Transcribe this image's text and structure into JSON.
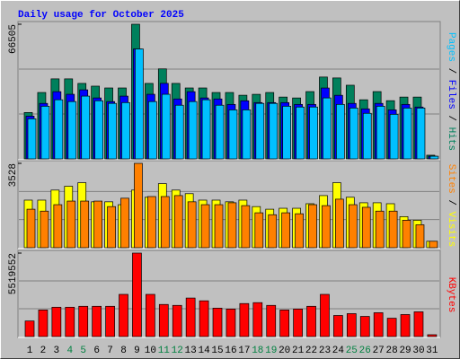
{
  "chart_data": [
    {
      "type": "bar",
      "title": "Daily usage for October 2025",
      "categories": [
        1,
        2,
        3,
        4,
        5,
        6,
        7,
        8,
        9,
        10,
        11,
        12,
        13,
        14,
        15,
        16,
        17,
        18,
        19,
        20,
        21,
        22,
        23,
        24,
        25,
        26,
        27,
        28,
        29,
        30,
        31
      ],
      "category_colors": [
        "#000000",
        "#000000",
        "#000000",
        "#008040",
        "#008040",
        "#000000",
        "#000000",
        "#000000",
        "#000000",
        "#000000",
        "#008040",
        "#008040",
        "#000000",
        "#000000",
        "#000000",
        "#000000",
        "#000000",
        "#008040",
        "#008040",
        "#000000",
        "#000000",
        "#000000",
        "#000000",
        "#000000",
        "#008040",
        "#008040",
        "#000000",
        "#000000",
        "#000000",
        "#000000",
        "#000000"
      ],
      "legend_separator": " / ",
      "ylim": [
        0,
        66505
      ],
      "yticks": [
        66505
      ],
      "series": [
        {
          "name": "Hits",
          "color": "#00805c",
          "values": [
            22900,
            32780,
            39510,
            39510,
            37270,
            35920,
            35020,
            35020,
            66505,
            37270,
            44450,
            37270,
            35020,
            35020,
            32780,
            32780,
            31430,
            31880,
            32780,
            30530,
            30080,
            33230,
            40410,
            39960,
            36370,
            29190,
            33230,
            28740,
            30530,
            30530,
            1800
          ]
        },
        {
          "name": "Files",
          "color": "#0000ff",
          "values": [
            21100,
            27400,
            33200,
            31900,
            34100,
            30100,
            28300,
            31000,
            54300,
            31900,
            37300,
            29600,
            33200,
            30100,
            29600,
            26900,
            28700,
            27800,
            27800,
            27800,
            26900,
            26900,
            35000,
            31400,
            27400,
            24700,
            27400,
            24200,
            26900,
            25600,
            1300
          ]
        },
        {
          "name": "Pages",
          "color": "#00c0ff",
          "values": [
            19800,
            26000,
            29200,
            28300,
            31000,
            28700,
            27400,
            27800,
            54300,
            28300,
            31900,
            26500,
            28300,
            29200,
            26500,
            24200,
            24200,
            27400,
            27400,
            26000,
            25600,
            25600,
            30100,
            26900,
            25100,
            22500,
            26000,
            22000,
            25100,
            25100,
            1300
          ]
        }
      ]
    },
    {
      "type": "bar",
      "legend_separator": " / ",
      "ylim": [
        0,
        3528
      ],
      "yticks": [
        3528
      ],
      "series": [
        {
          "name": "Visits",
          "color": "#ffff00",
          "values": [
            1990,
            1990,
            2410,
            2570,
            2720,
            1920,
            1920,
            1800,
            2410,
            2110,
            2680,
            2410,
            2260,
            1990,
            1990,
            1920,
            1990,
            1720,
            1610,
            1650,
            1650,
            1840,
            2180,
            2720,
            2110,
            1880,
            1880,
            1840,
            1300,
            1150,
            270
          ]
        },
        {
          "name": "Sites",
          "color": "#ff8000",
          "values": [
            1610,
            1530,
            1800,
            1950,
            1950,
            1950,
            1720,
            2070,
            3528,
            2140,
            2140,
            2180,
            1920,
            1800,
            1800,
            1880,
            1760,
            1460,
            1380,
            1460,
            1420,
            1800,
            1760,
            2030,
            1800,
            1690,
            1530,
            1530,
            1150,
            960,
            270
          ]
        }
      ]
    },
    {
      "type": "bar",
      "ylim": [
        0,
        5519552
      ],
      "yticks": [
        5519552
      ],
      "series": [
        {
          "name": "KBytes",
          "color": "#ff0000",
          "values": [
            1031000,
            1759000,
            1941000,
            1941000,
            2001000,
            2001000,
            2001000,
            2790000,
            5519552,
            2790000,
            2123000,
            2062000,
            2547000,
            2365000,
            1880000,
            1820000,
            2183000,
            2244000,
            2062000,
            1759000,
            1820000,
            2001000,
            2790000,
            1395000,
            1516000,
            1334000,
            1577000,
            1213000,
            1456000,
            1637000,
            121000
          ]
        }
      ]
    }
  ]
}
